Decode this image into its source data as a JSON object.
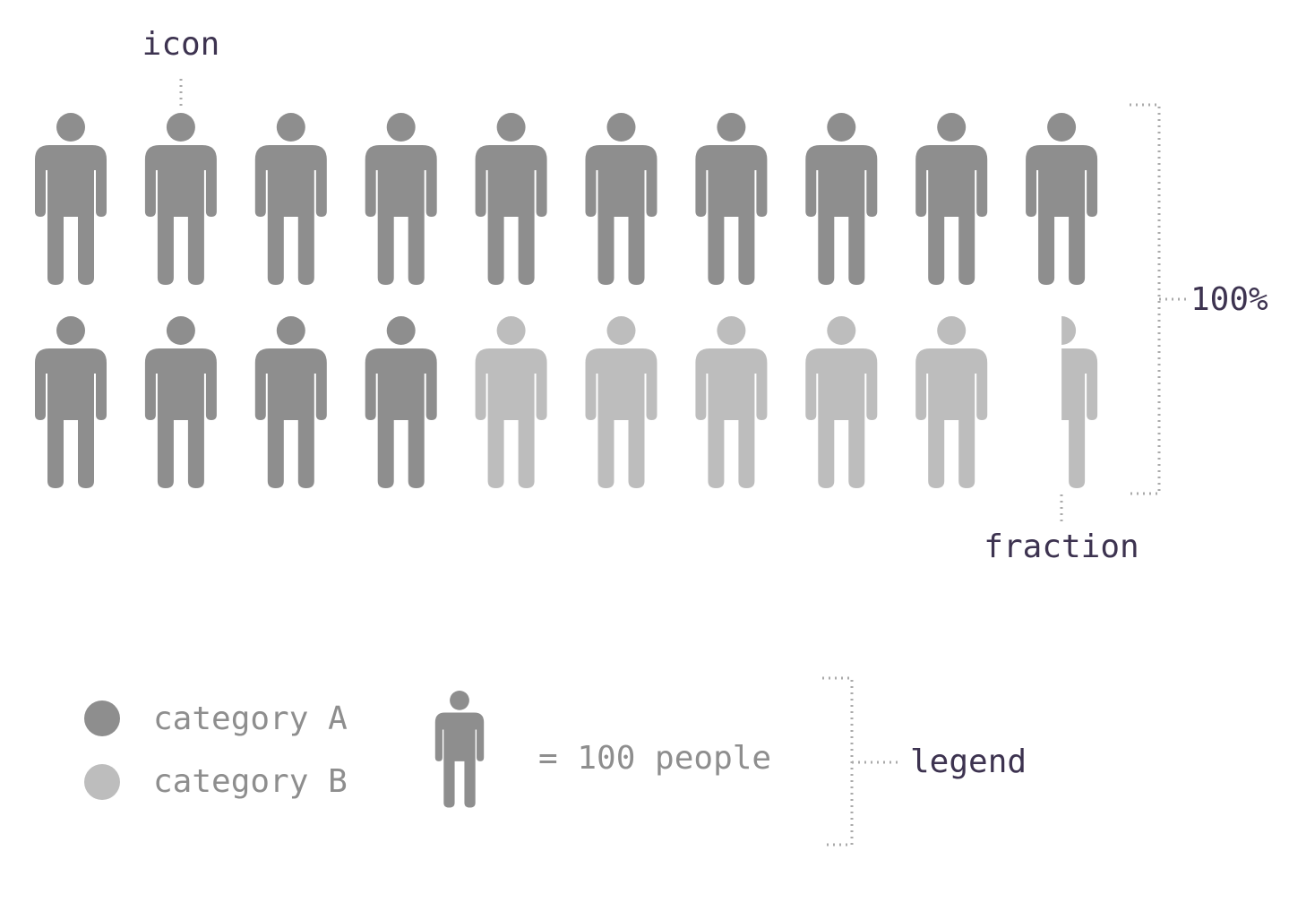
{
  "annotations": {
    "icon": "icon",
    "total": "100%",
    "fraction": "fraction",
    "legend": "legend"
  },
  "legend": {
    "items": [
      {
        "label": "category A",
        "color": "#8e8e8e"
      },
      {
        "label": "category B",
        "color": "#bdbdbd"
      }
    ],
    "unit_text": "= 100 people"
  },
  "colors": {
    "category_a": "#8e8e8e",
    "category_b": "#bdbdbd",
    "fraction_remainder": "#dedede",
    "annotation_text": "#3d3350",
    "dotted_lines": "#aaaaaa"
  },
  "chart_data": {
    "type": "pictogram",
    "icon": "person-icon",
    "icons_total": 20,
    "icons_per_row": 10,
    "series": [
      {
        "name": "category A",
        "icons": 14
      },
      {
        "name": "category B",
        "icons": 5.6
      }
    ],
    "unit_value": 100,
    "unit_label": "people"
  }
}
